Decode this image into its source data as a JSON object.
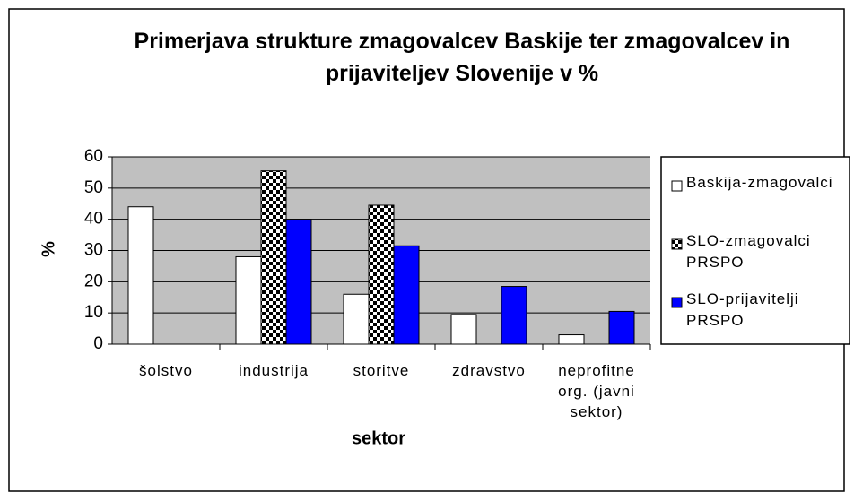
{
  "chart_data": {
    "type": "bar",
    "title": "Primerjava strukture zmagovalcev Baskije ter zmagovalcev in prijaviteljev Slovenije v %",
    "xlabel": "sektor",
    "ylabel": "%",
    "categories": [
      "šolstvo",
      "industrija",
      "storitve",
      "zdravstvo",
      "neprofitne org. (javni sektor)"
    ],
    "series": [
      {
        "name": "Baskija-zmagovalci",
        "color": "#ffffff",
        "values": [
          44,
          28,
          16,
          9.5,
          3
        ]
      },
      {
        "name": "SLO-zmagovalci PRSPO",
        "color": "#000000",
        "pattern": "checkered",
        "values": [
          null,
          55.5,
          44.5,
          null,
          null
        ]
      },
      {
        "name": "SLO-prijavitelji PRSPO",
        "color": "#0000ff",
        "values": [
          null,
          40,
          31.5,
          18.5,
          10.5
        ]
      }
    ],
    "ylim": [
      0,
      60
    ],
    "yticks": [
      0,
      10,
      20,
      30,
      40,
      50,
      60
    ],
    "grid": true,
    "legend": "right",
    "plot_background": "#c0c0c0"
  }
}
